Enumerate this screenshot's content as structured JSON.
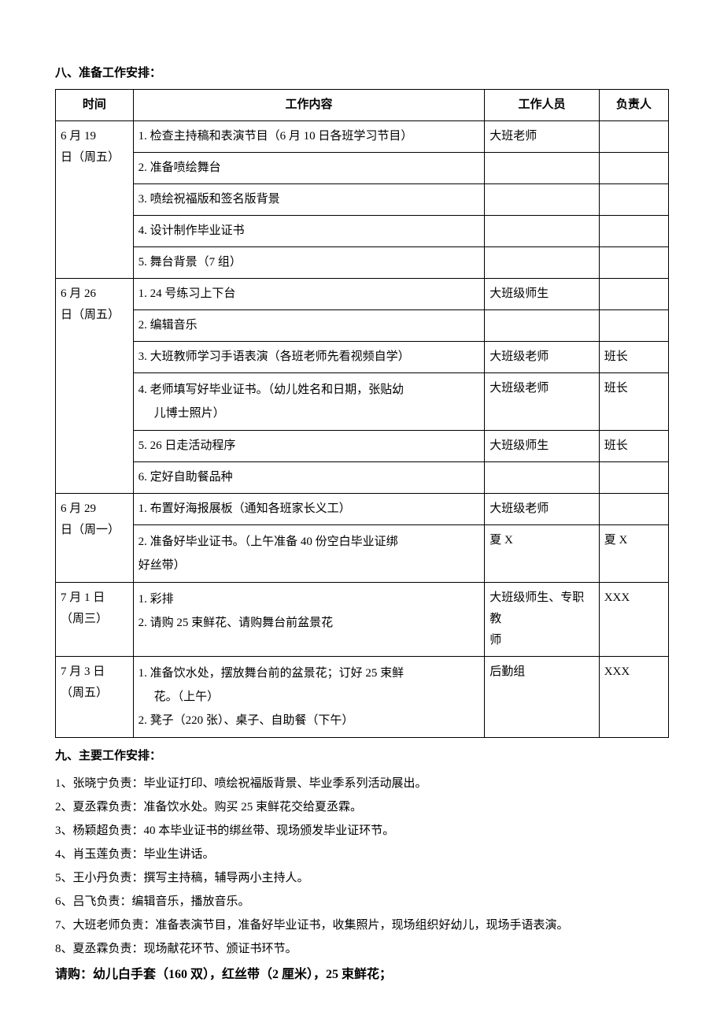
{
  "section8": {
    "title": "八、准备工作安排：",
    "headers": {
      "time": "时间",
      "content": "工作内容",
      "staff": "工作人员",
      "owner": "负责人"
    },
    "rows": {
      "r1": {
        "time1": "6 月 19",
        "time2": "日（周五）",
        "t1": "1. 检查主持稿和表演节目（6 月 10 日各班学习节目）",
        "s1": "大班老师",
        "o1": "",
        "t2": "2. 准备喷绘舞台",
        "s2": "",
        "o2": "",
        "t3": "3. 喷绘祝福版和签名版背景",
        "s3": "",
        "o3": "",
        "t4": "4. 设计制作毕业证书",
        "s4": "",
        "o4": "",
        "t5": "5. 舞台背景（7 组）",
        "s5": "",
        "o5": ""
      },
      "r2": {
        "time1": "6 月 26",
        "time2": "日（周五）",
        "t1": "1. 24 号练习上下台",
        "s1": "大班级师生",
        "o1": "",
        "t2": "2. 编辑音乐",
        "s2": "",
        "o2": "",
        "t3": "3. 大班教师学习手语表演（各班老师先看视频自学）",
        "s3": "大班级老师",
        "o3": "班长",
        "t4a": "4. 老师填写好毕业证书。（幼儿姓名和日期，张贴幼",
        "t4b": "儿博士照片）",
        "s4": "大班级老师",
        "o4": "班长",
        "t5": "5. 26 日走活动程序",
        "s5": "大班级师生",
        "o5": "班长",
        "t6": "6. 定好自助餐品种",
        "s6": "",
        "o6": ""
      },
      "r3": {
        "time1": "6 月 29",
        "time2": "日（周一）",
        "t1": "1. 布置好海报展板（通知各班家长义工）",
        "s1": "大班级老师",
        "o1": "",
        "t2a": "2. 准备好毕业证书。（上午准备 40 份空白毕业证绑",
        "t2b": "好丝带）",
        "s2": "夏 X",
        "o2": "夏 X"
      },
      "r4": {
        "time1": "7 月 1 日",
        "time2": "（周三）",
        "t1": "1. 彩排",
        "t2": "2. 请购 25 束鲜花、请购舞台前盆景花",
        "s1a": "大班级师生、专职教",
        "s1b": "师",
        "o1": "XXX"
      },
      "r5": {
        "time1": "7 月 3 日",
        "time2": "（周五）",
        "t1a": "1.  准备饮水处，摆放舞台前的盆景花；订好 25 束鲜",
        "t1b": "花。（上午）",
        "t2": "2.  凳子（220 张）、桌子、自助餐（下午）",
        "s1": "后勤组",
        "o1": "XXX"
      }
    }
  },
  "section9": {
    "title": "九、主要工作安排："
  },
  "list": {
    "i1": "1、张晓宁负责：毕业证打印、喷绘祝福版背景、毕业季系列活动展出。",
    "i2": "2、夏丞霖负责：准备饮水处。购买 25 束鲜花交给夏丞霖。",
    "i3": "3、杨颖超负责：40 本毕业证书的绑丝带、现场颁发毕业证环节。",
    "i4": "4、肖玉莲负责：毕业生讲话。",
    "i5": "5、王小丹负责：撰写主持稿，辅导两小主持人。",
    "i6": "6、吕飞负责：编辑音乐，播放音乐。",
    "i7": "7、大班老师负责：准备表演节目，准备好毕业证书，收集照片，现场组织好幼儿，现场手语表演。",
    "i8": "8、夏丞霖负责：现场献花环节、颁证书环节。"
  },
  "purchase": "请购：幼儿白手套（160 双），红丝带（2 厘米），25 束鲜花；"
}
